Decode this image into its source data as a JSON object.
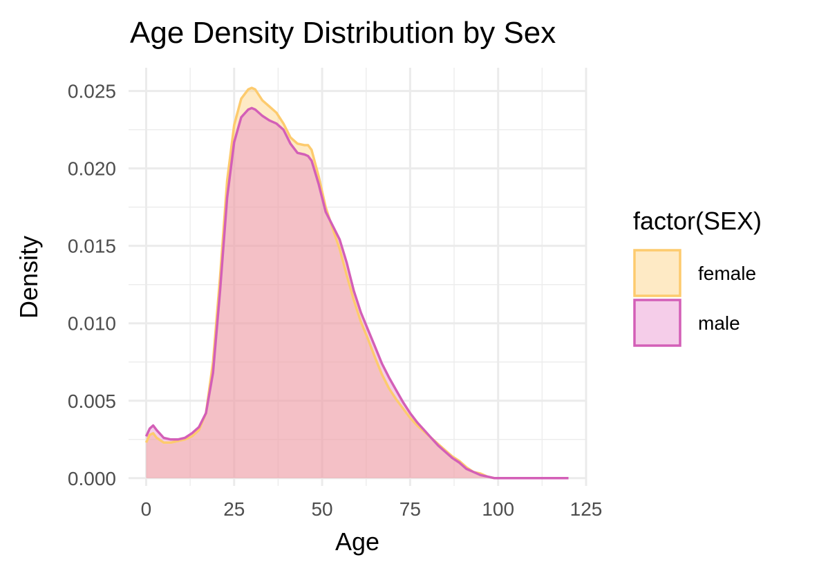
{
  "chart_data": {
    "type": "area",
    "title": "Age Density Distribution by Sex",
    "xlabel": "Age",
    "ylabel": "Density",
    "xlim": [
      -5,
      125
    ],
    "ylim": [
      -0.0005,
      0.0265
    ],
    "x_ticks": [
      0,
      25,
      50,
      75,
      100,
      125
    ],
    "y_ticks": [
      0,
      0.005,
      0.01,
      0.015,
      0.02,
      0.025
    ],
    "y_tick_labels": [
      "0.000",
      "0.005",
      "0.010",
      "0.015",
      "0.020",
      "0.025"
    ],
    "grid": true,
    "legend": {
      "title": "factor(SEX)",
      "placement": "right"
    },
    "x": [
      0,
      1,
      2,
      3,
      5,
      7,
      9,
      11,
      13,
      15,
      17,
      19,
      21,
      23,
      25,
      27,
      29,
      30,
      31,
      33,
      35,
      37,
      39,
      41,
      43,
      45,
      46,
      47,
      49,
      51,
      53,
      55,
      57,
      59,
      61,
      63,
      65,
      67,
      69,
      71,
      73,
      75,
      77,
      79,
      81,
      83,
      85,
      87,
      89,
      91,
      93,
      95,
      97,
      99,
      101,
      105,
      110,
      115,
      120
    ],
    "series": [
      {
        "name": "female",
        "fill": "#fdcb6e",
        "stroke": "#fdcb6e",
        "values": [
          0.0023,
          0.0028,
          0.0029,
          0.0026,
          0.0023,
          0.0023,
          0.0024,
          0.0025,
          0.0027,
          0.0031,
          0.0042,
          0.0075,
          0.013,
          0.0192,
          0.0228,
          0.0245,
          0.0251,
          0.0252,
          0.0251,
          0.0244,
          0.024,
          0.0236,
          0.0229,
          0.022,
          0.0216,
          0.0215,
          0.0215,
          0.0212,
          0.0195,
          0.0175,
          0.0161,
          0.0148,
          0.0131,
          0.0115,
          0.0101,
          0.009,
          0.0078,
          0.0067,
          0.0058,
          0.0051,
          0.0045,
          0.0039,
          0.0034,
          0.003,
          0.0026,
          0.0022,
          0.0018,
          0.0014,
          0.0011,
          0.0007,
          0.0004,
          0.0003,
          0.0001,
          0.0,
          0.0,
          0.0,
          0.0,
          0.0,
          0.0
        ]
      },
      {
        "name": "male",
        "fill": "#e682c8",
        "stroke": "#d35fb7",
        "values": [
          0.0027,
          0.0032,
          0.0034,
          0.0031,
          0.0026,
          0.0025,
          0.0025,
          0.0026,
          0.0029,
          0.0033,
          0.0042,
          0.0068,
          0.0121,
          0.0181,
          0.0217,
          0.0233,
          0.0238,
          0.0239,
          0.0238,
          0.0234,
          0.0231,
          0.0229,
          0.0225,
          0.0216,
          0.021,
          0.0209,
          0.0208,
          0.0205,
          0.019,
          0.0172,
          0.0163,
          0.0154,
          0.0139,
          0.0121,
          0.0107,
          0.0096,
          0.0085,
          0.0074,
          0.0065,
          0.0057,
          0.0049,
          0.0042,
          0.0036,
          0.0031,
          0.0026,
          0.0021,
          0.0017,
          0.0013,
          0.001,
          0.0006,
          0.0004,
          0.0002,
          0.0001,
          0.0,
          0.0,
          0.0,
          0.0,
          0.0,
          0.0
        ]
      }
    ]
  }
}
